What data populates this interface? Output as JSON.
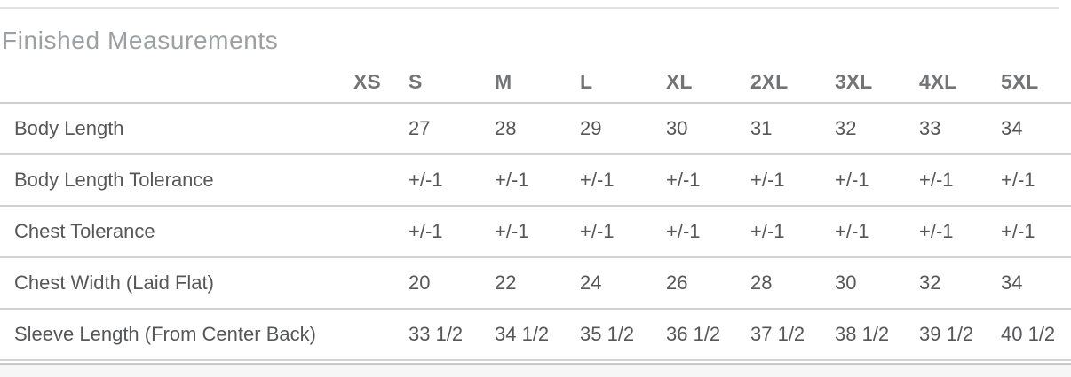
{
  "title": "Finished Measurements",
  "table": {
    "sizes": [
      "XS",
      "S",
      "M",
      "L",
      "XL",
      "2XL",
      "3XL",
      "4XL",
      "5XL"
    ],
    "rows": [
      {
        "label": "Body Length",
        "values": [
          "",
          "27",
          "28",
          "29",
          "30",
          "31",
          "32",
          "33",
          "34"
        ]
      },
      {
        "label": "Body Length Tolerance",
        "values": [
          "",
          "+/-1",
          "+/-1",
          "+/-1",
          "+/-1",
          "+/-1",
          "+/-1",
          "+/-1",
          "+/-1"
        ]
      },
      {
        "label": "Chest Tolerance",
        "values": [
          "",
          "+/-1",
          "+/-1",
          "+/-1",
          "+/-1",
          "+/-1",
          "+/-1",
          "+/-1",
          "+/-1"
        ]
      },
      {
        "label": "Chest Width (Laid Flat)",
        "values": [
          "",
          "20",
          "22",
          "24",
          "26",
          "28",
          "30",
          "32",
          "34"
        ]
      },
      {
        "label": "Sleeve Length (From Center Back)",
        "values": [
          "",
          "33 1/2",
          "34 1/2",
          "35 1/2",
          "36 1/2",
          "37 1/2",
          "38 1/2",
          "39 1/2",
          "40 1/2"
        ]
      }
    ]
  },
  "colors": {
    "title_text": "#9da0a2",
    "header_text": "#737476",
    "body_text": "#565759",
    "separator": "#d2d2d2",
    "footer_background": "#f6f6f6"
  }
}
